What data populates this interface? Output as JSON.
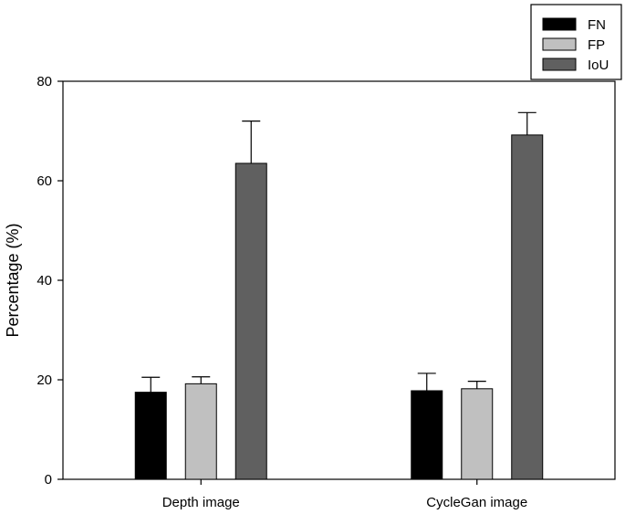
{
  "chart_data": {
    "type": "bar",
    "categories": [
      "Depth image",
      "CycleGan image"
    ],
    "series": [
      {
        "name": "FN",
        "color": "#000000",
        "values": [
          17.5,
          17.8
        ],
        "errors": [
          3.0,
          3.5
        ]
      },
      {
        "name": "FP",
        "color": "#c0c0c0",
        "values": [
          19.2,
          18.2
        ],
        "errors": [
          1.4,
          1.5
        ]
      },
      {
        "name": "IoU",
        "color": "#606060",
        "values": [
          63.5,
          69.2
        ],
        "errors": [
          8.5,
          4.5
        ]
      }
    ],
    "ylabel": "Percentage (%)",
    "xlabel": "",
    "ylim": [
      0,
      80
    ],
    "yticks": [
      0,
      20,
      40,
      60,
      80
    ],
    "grid": false,
    "legend_position": "top-right",
    "error_bars": "upper"
  }
}
